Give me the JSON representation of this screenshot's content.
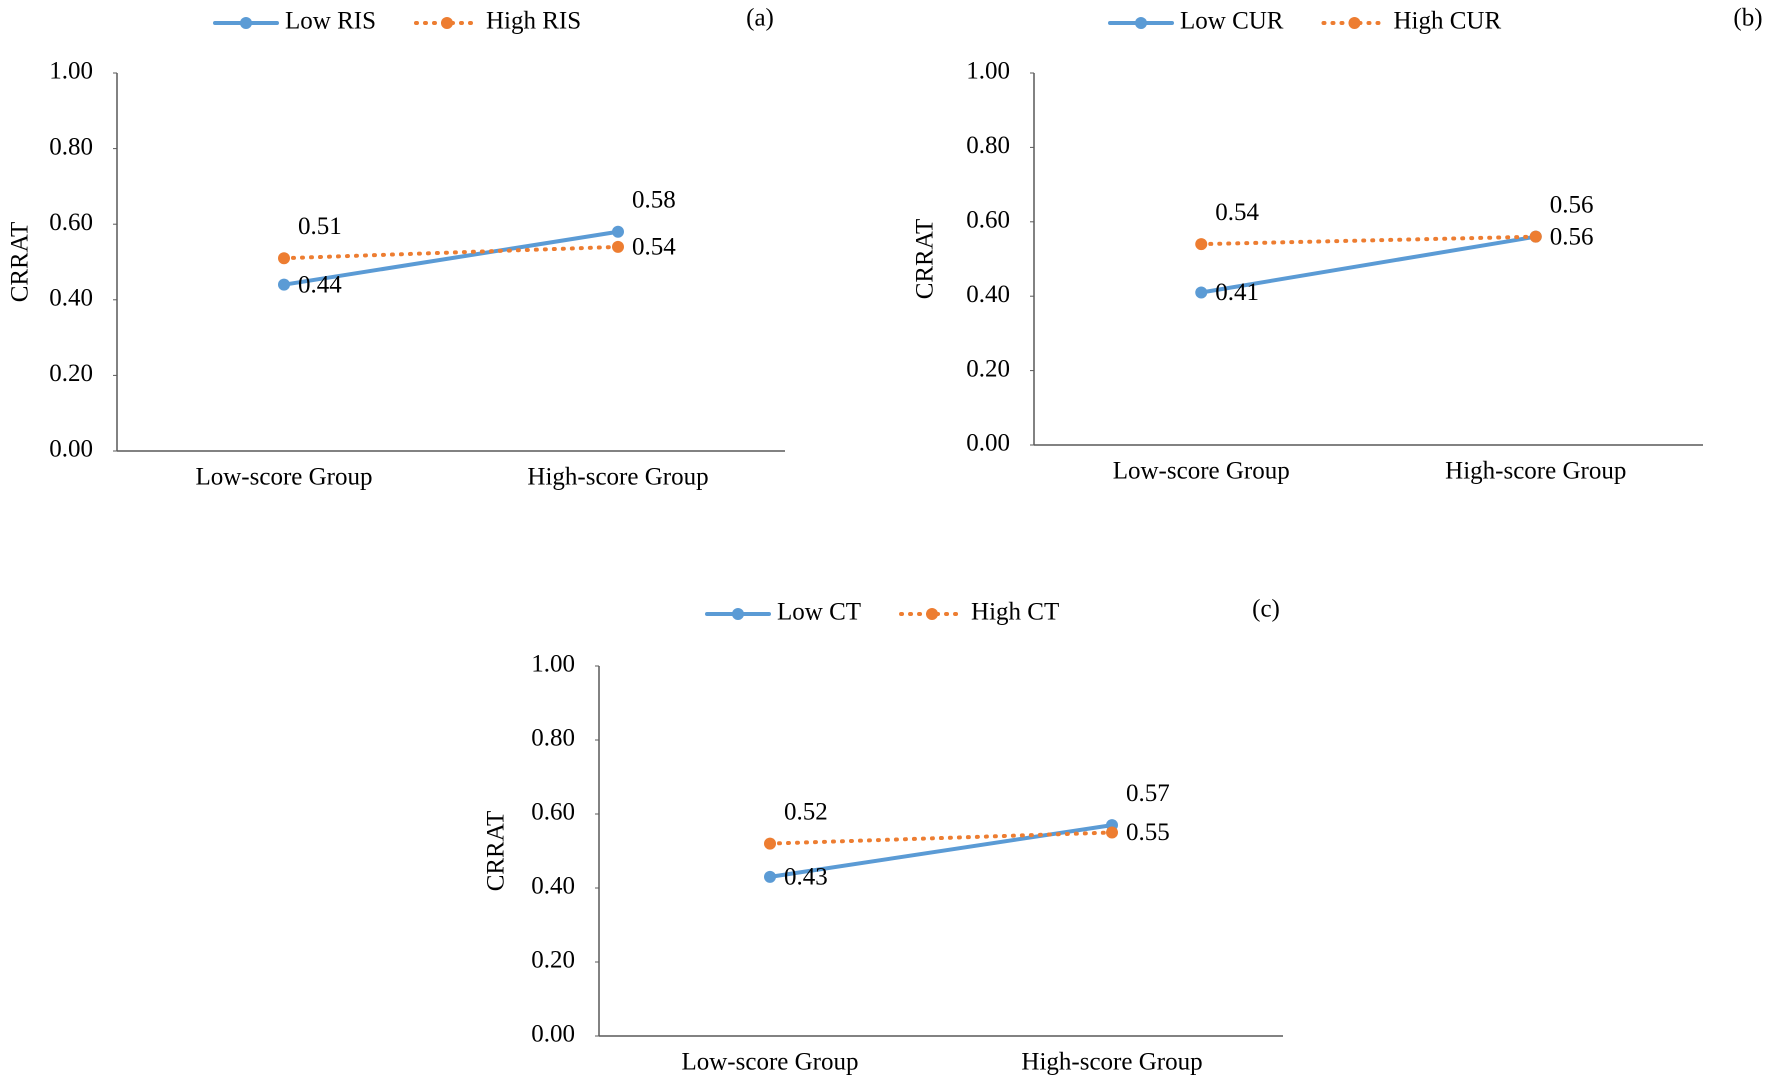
{
  "chart_data": [
    {
      "type": "line",
      "panel_label": "(a)",
      "y_label": "CRRAT",
      "categories": [
        "Low-score Group",
        "High-score Group"
      ],
      "series": [
        {
          "name": "Low RIS",
          "color": "#5b9bd5",
          "style": "solid",
          "values": [
            0.44,
            0.58
          ]
        },
        {
          "name": "High RIS",
          "color": "#ed7d31",
          "style": "dotted",
          "values": [
            0.51,
            0.54
          ]
        }
      ],
      "ylim": [
        0,
        1
      ],
      "yticks": [
        {
          "value": 0,
          "label": "0.00"
        },
        {
          "value": 0.2,
          "label": "0.20"
        },
        {
          "value": 0.4,
          "label": "0.40"
        },
        {
          "value": 0.6,
          "label": "0.60"
        },
        {
          "value": 0.8,
          "label": "0.80"
        },
        {
          "value": 1,
          "label": "1.00"
        }
      ]
    },
    {
      "type": "line",
      "panel_label": "(b)",
      "y_label": "CRRAT",
      "categories": [
        "Low-score Group",
        "High-score Group"
      ],
      "series": [
        {
          "name": "Low CUR",
          "color": "#5b9bd5",
          "style": "solid",
          "values": [
            0.41,
            0.56
          ]
        },
        {
          "name": "High CUR",
          "color": "#ed7d31",
          "style": "dotted",
          "values": [
            0.54,
            0.56
          ]
        }
      ],
      "ylim": [
        0,
        1
      ],
      "yticks": [
        {
          "value": 0,
          "label": "0.00"
        },
        {
          "value": 0.2,
          "label": "0.20"
        },
        {
          "value": 0.4,
          "label": "0.40"
        },
        {
          "value": 0.6,
          "label": "0.60"
        },
        {
          "value": 0.8,
          "label": "0.80"
        },
        {
          "value": 1,
          "label": "1.00"
        }
      ]
    },
    {
      "type": "line",
      "panel_label": "(c)",
      "y_label": "CRRAT",
      "categories": [
        "Low-score Group",
        "High-score Group"
      ],
      "series": [
        {
          "name": "Low CT",
          "color": "#5b9bd5",
          "style": "solid",
          "values": [
            0.43,
            0.57
          ]
        },
        {
          "name": "High CT",
          "color": "#ed7d31",
          "style": "dotted",
          "values": [
            0.52,
            0.55
          ]
        }
      ],
      "ylim": [
        0,
        1
      ],
      "yticks": [
        {
          "value": 0,
          "label": "0.00"
        },
        {
          "value": 0.2,
          "label": "0.20"
        },
        {
          "value": 0.4,
          "label": "0.40"
        },
        {
          "value": 0.6,
          "label": "0.60"
        },
        {
          "value": 0.8,
          "label": "0.80"
        },
        {
          "value": 1,
          "label": "1.00"
        }
      ]
    }
  ]
}
